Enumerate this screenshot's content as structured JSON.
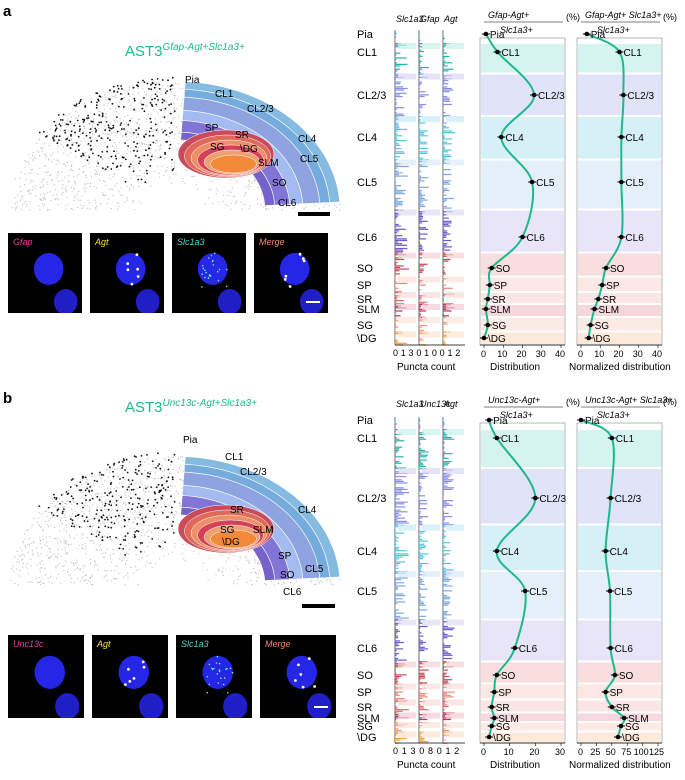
{
  "panels": [
    {
      "letter": "a",
      "title_main": "AST3",
      "title_sup": "Gfap-Agt+Slc1a3+",
      "brain_labels": [
        {
          "key": "pia",
          "text": "Pia"
        },
        {
          "key": "cl1",
          "text": "CL1"
        },
        {
          "key": "cl23",
          "text": "CL2/3"
        },
        {
          "key": "cl4",
          "text": "CL4"
        },
        {
          "key": "cl5",
          "text": "CL5"
        },
        {
          "key": "cl6",
          "text": "CL6"
        },
        {
          "key": "sp",
          "text": "SP"
        },
        {
          "key": "sr",
          "text": "SR"
        },
        {
          "key": "dg",
          "text": "\\DG"
        },
        {
          "key": "sg",
          "text": "SG"
        },
        {
          "key": "slm",
          "text": "SLM"
        },
        {
          "key": "so",
          "text": "SO"
        }
      ],
      "micro_labels": [
        {
          "text": "Gfap",
          "color": "#e040a0"
        },
        {
          "text": "Agt",
          "color": "#f5e24a"
        },
        {
          "text": "Slc1a3",
          "color": "#4fd7c9"
        },
        {
          "text": "Merge",
          "color": "#f08a6a"
        }
      ],
      "gene_headers": [
        "Slc1a3",
        "Gfap",
        "Agt"
      ],
      "puncta_ticks": [
        "0",
        "1",
        "3",
        "0",
        "1",
        "0",
        "0",
        "1",
        "2"
      ],
      "puncta_xlabel": "Puncta count",
      "dist_header_line1": "Gfap-Agt+",
      "dist_header_line2": "Slc1a3+",
      "dist_unit": "(%)",
      "norm_header_line1": "Gfap-Agt+ Slc1a3+",
      "norm_header_line2": "Slc1a3+",
      "norm_unit": "(%)",
      "layers": [
        "Pia",
        "CL1",
        "CL2/3",
        "CL4",
        "CL5",
        "CL6",
        "SO",
        "SP",
        "SR",
        "SLM",
        "SG",
        "\\DG"
      ],
      "dist_ticks": [
        "0",
        "10",
        "20",
        "30",
        "40"
      ],
      "norm_ticks": [
        "0",
        "10",
        "20",
        "30",
        "40"
      ],
      "dist_xlabel": "Distribution",
      "norm_xlabel": "Normalized distribution"
    },
    {
      "letter": "b",
      "title_main": "AST3",
      "title_sup": "Unc13c-Agt+Slc1a3+",
      "brain_labels": [
        {
          "key": "pia",
          "text": "Pia"
        },
        {
          "key": "cl1",
          "text": "CL1"
        },
        {
          "key": "cl23",
          "text": "CL2/3"
        },
        {
          "key": "cl4",
          "text": "CL4"
        },
        {
          "key": "cl5",
          "text": "CL5"
        },
        {
          "key": "cl6",
          "text": "CL6"
        },
        {
          "key": "sr",
          "text": "SR"
        },
        {
          "key": "slm",
          "text": "SLM"
        },
        {
          "key": "sg",
          "text": "SG"
        },
        {
          "key": "dg",
          "text": "\\DG"
        },
        {
          "key": "sp",
          "text": "SP"
        },
        {
          "key": "so",
          "text": "SO"
        }
      ],
      "micro_labels": [
        {
          "text": "Unc13c",
          "color": "#e040a0"
        },
        {
          "text": "Agt",
          "color": "#f5e24a"
        },
        {
          "text": "Slc1a3",
          "color": "#4fd7c9"
        },
        {
          "text": "Merge",
          "color": "#f08a6a"
        }
      ],
      "gene_headers": [
        "Slc1a3",
        "Unc13c",
        "Agt"
      ],
      "puncta_ticks": [
        "0",
        "1",
        "3",
        "0",
        "8",
        "0",
        "1",
        "2"
      ],
      "puncta_xlabel": "Puncta count",
      "dist_header_line1": "Unc13c-Agt+",
      "dist_header_line2": "Slc1a3+",
      "dist_unit": "(%)",
      "norm_header_line1": "Unc13c-Agt+ Slc1a3+",
      "norm_header_line2": "Slc1a3+",
      "norm_unit": "(%)",
      "layers": [
        "Pia",
        "CL1",
        "CL2/3",
        "CL4",
        "CL5",
        "CL6",
        "SO",
        "SP",
        "SR",
        "SLM",
        "SG",
        "\\DG"
      ],
      "dist_ticks": [
        "0",
        "10",
        "20",
        "30"
      ],
      "norm_ticks": [
        "0",
        "25",
        "50",
        "75",
        "100",
        "125"
      ],
      "dist_xlabel": "Distribution",
      "norm_xlabel": "Normalized distribution"
    }
  ],
  "chart_data": [
    {
      "type": "line",
      "panel": "a",
      "xlabel": "Distribution",
      "xunit": "(%)",
      "xlim": [
        0,
        40
      ],
      "categories": [
        "Pia",
        "CL1",
        "CL2/3",
        "CL4",
        "CL5",
        "CL6",
        "SO",
        "SP",
        "SR",
        "SLM",
        "SG",
        "\\DG"
      ],
      "values": [
        1,
        7,
        26,
        9,
        25,
        20,
        4,
        3,
        2,
        1,
        2,
        0
      ]
    },
    {
      "type": "line",
      "panel": "a",
      "xlabel": "Normalized distribution",
      "xunit": "(%)",
      "xlim": [
        0,
        40
      ],
      "categories": [
        "Pia",
        "CL1",
        "CL2/3",
        "CL4",
        "CL5",
        "CL6",
        "SO",
        "SP",
        "SR",
        "SLM",
        "SG",
        "\\DG"
      ],
      "values": [
        3,
        20,
        22,
        21,
        21,
        21,
        13,
        11,
        9,
        7,
        5,
        4
      ]
    },
    {
      "type": "line",
      "panel": "b",
      "xlabel": "Distribution",
      "xunit": "(%)",
      "xlim": [
        0,
        30
      ],
      "categories": [
        "Pia",
        "CL1",
        "CL2/3",
        "CL4",
        "CL5",
        "CL6",
        "SO",
        "SP",
        "SR",
        "SLM",
        "SG",
        "\\DG"
      ],
      "values": [
        2,
        5,
        20,
        5,
        16,
        12,
        5,
        4,
        3,
        4,
        3,
        2
      ]
    },
    {
      "type": "line",
      "panel": "b",
      "xlabel": "Normalized distribution",
      "xunit": "(%)",
      "xlim": [
        0,
        125
      ],
      "categories": [
        "Pia",
        "CL1",
        "CL2/3",
        "CL4",
        "CL5",
        "CL6",
        "SO",
        "SP",
        "SR",
        "SLM",
        "SG",
        "\\DG"
      ],
      "values": [
        0,
        50,
        48,
        40,
        47,
        48,
        55,
        40,
        50,
        70,
        65,
        60
      ]
    }
  ],
  "colors": {
    "accent": "#1fb88e",
    "line": "#1fb88e",
    "pia": "#7fb7e0",
    "cl1": "#6fa8dc",
    "cl23": "#8a9fe0",
    "cl4": "#9fb8f0",
    "cl5": "#7b6fd6",
    "cl6": "#6e5bc9",
    "hippo": "#d9544f"
  }
}
